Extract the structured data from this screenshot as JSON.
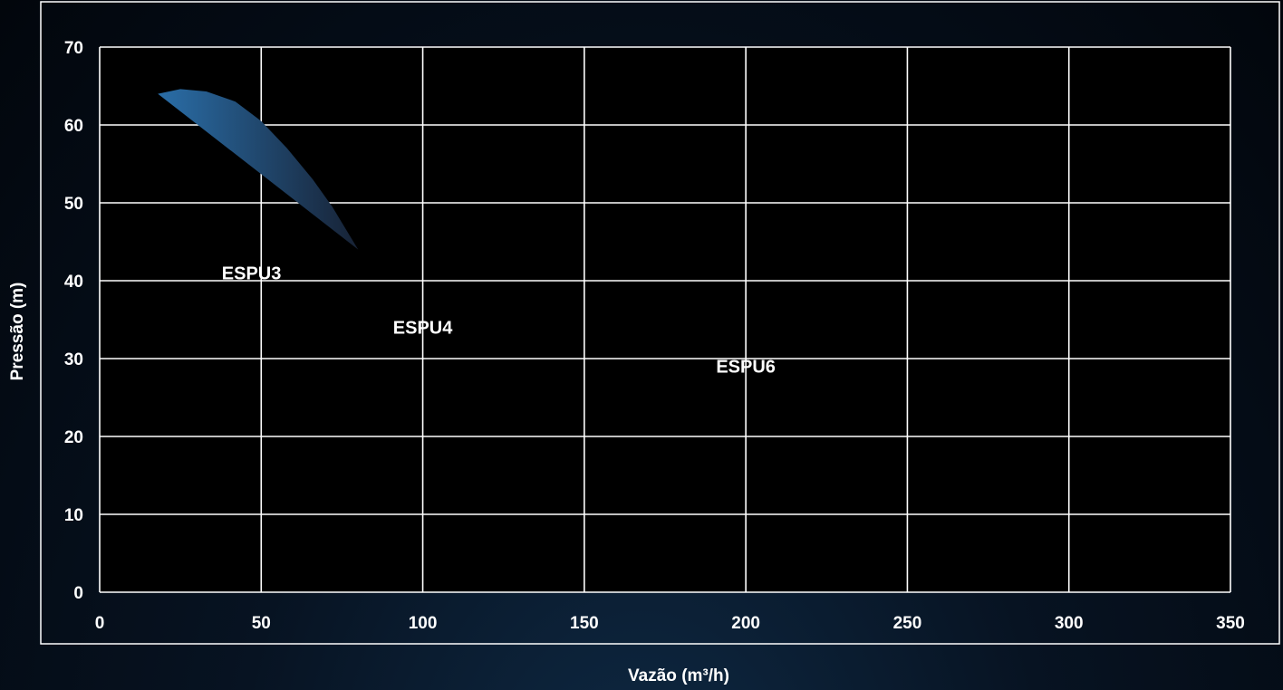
{
  "chart_data": {
    "type": "area",
    "title": "",
    "xlabel": "Vazão (m³/h)",
    "ylabel": "Pressão (m)",
    "xlim": [
      0,
      350
    ],
    "ylim": [
      0,
      70
    ],
    "x_ticks": [
      0,
      50,
      100,
      150,
      200,
      250,
      300,
      350
    ],
    "y_ticks": [
      0,
      10,
      20,
      30,
      40,
      50,
      60,
      70
    ],
    "grid": true,
    "legend": "none",
    "colors": {
      "region_light": "#2a8fd6",
      "region_dark": "#182436",
      "grid": "#ffffff",
      "frame": "#ffffff"
    },
    "series": [
      {
        "name": "ESPU3",
        "label_at": [
          47,
          41
        ],
        "polygon": [
          [
            18,
            64
          ],
          [
            25,
            64.6
          ],
          [
            33,
            64.3
          ],
          [
            42,
            63
          ],
          [
            50,
            60.5
          ],
          [
            58,
            57
          ],
          [
            66,
            53
          ],
          [
            72,
            49.5
          ],
          [
            80,
            44
          ]
        ]
      },
      {
        "name": "ESPU4",
        "label_at": [
          100,
          34
        ],
        "polygon": []
      },
      {
        "name": "ESPU6",
        "label_at": [
          200,
          29
        ],
        "polygon": []
      }
    ]
  }
}
